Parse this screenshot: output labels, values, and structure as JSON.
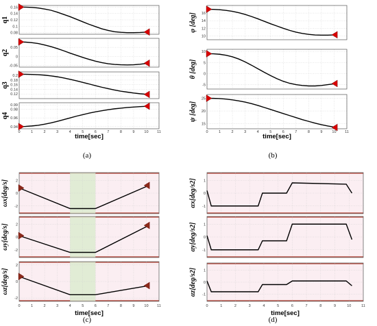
{
  "captions": [
    "(a)",
    "(b)",
    "(c)",
    "(d)"
  ],
  "chart_data": [
    {
      "panel": "(a)",
      "type": "line",
      "xlabel": "time[sec]",
      "xlim": [
        0,
        11
      ],
      "xticks": [
        0,
        1,
        2,
        3,
        4,
        5,
        6,
        7,
        8,
        9,
        10,
        11
      ],
      "subplots": [
        {
          "ylabel": "q1",
          "ylim": [
            0.075,
            0.165
          ],
          "yticks": [
            0.08,
            0.1,
            0.12,
            0.14,
            0.16
          ],
          "x": [
            0,
            0.5,
            1,
            1.5,
            2,
            2.5,
            3,
            3.5,
            4,
            4.5,
            5,
            5.5,
            6,
            6.5,
            7,
            7.5,
            8,
            8.5,
            9,
            9.5,
            10.2
          ],
          "y": [
            0.16,
            0.1598,
            0.159,
            0.157,
            0.154,
            0.15,
            0.144,
            0.137,
            0.13,
            0.122,
            0.114,
            0.106,
            0.099,
            0.092,
            0.087,
            0.083,
            0.081,
            0.08,
            0.08,
            0.0805,
            0.082
          ],
          "markers": [
            {
              "x": 0,
              "y": 0.16
            },
            {
              "x": 10.2,
              "y": 0.082
            }
          ]
        },
        {
          "ylabel": "q2",
          "ylim": [
            -0.06,
            0.1
          ],
          "yticks": [
            -0.05,
            0,
            0.05
          ],
          "x": [
            0,
            0.5,
            1,
            1.5,
            2,
            2.5,
            3,
            3.5,
            4,
            4.5,
            5,
            5.5,
            6,
            6.5,
            7,
            7.5,
            8,
            8.5,
            9,
            9.5,
            10.2
          ],
          "y": [
            0.08,
            0.079,
            0.076,
            0.071,
            0.063,
            0.054,
            0.043,
            0.031,
            0.018,
            0.006,
            -0.006,
            -0.017,
            -0.027,
            -0.035,
            -0.041,
            -0.045,
            -0.047,
            -0.048,
            -0.047,
            -0.044,
            -0.038
          ],
          "markers": [
            {
              "x": 0,
              "y": 0.08
            },
            {
              "x": 10.2,
              "y": -0.038
            }
          ]
        },
        {
          "ylabel": "q3",
          "ylim": [
            0.1,
            0.215
          ],
          "yticks": [
            0.12,
            0.14,
            0.16,
            0.18,
            0.2
          ],
          "x": [
            0,
            0.5,
            1,
            1.5,
            2,
            2.5,
            3,
            3.5,
            4,
            4.5,
            5,
            5.5,
            6,
            6.5,
            7,
            7.5,
            8,
            8.5,
            9,
            9.5,
            10.2
          ],
          "y": [
            0.205,
            0.205,
            0.204,
            0.203,
            0.201,
            0.198,
            0.194,
            0.189,
            0.183,
            0.177,
            0.17,
            0.163,
            0.156,
            0.149,
            0.143,
            0.137,
            0.132,
            0.128,
            0.124,
            0.121,
            0.118
          ],
          "markers": [
            {
              "x": 0,
              "y": 0.205
            },
            {
              "x": 10.2,
              "y": 0.118
            }
          ]
        },
        {
          "ylabel": "q4",
          "ylim": [
            0.935,
            0.995
          ],
          "yticks": [
            0.94,
            0.96,
            0.98,
            0.99
          ],
          "x": [
            0,
            0.5,
            1,
            1.5,
            2,
            2.5,
            3,
            3.5,
            4,
            4.5,
            5,
            5.5,
            6,
            6.5,
            7,
            7.5,
            8,
            8.5,
            9,
            9.5,
            10.2
          ],
          "y": [
            0.94,
            0.9405,
            0.9415,
            0.943,
            0.9455,
            0.9485,
            0.952,
            0.956,
            0.96,
            0.964,
            0.9675,
            0.971,
            0.974,
            0.9765,
            0.979,
            0.981,
            0.9825,
            0.984,
            0.985,
            0.986,
            0.987
          ],
          "markers": [
            {
              "x": 0,
              "y": 0.94
            },
            {
              "x": 10.2,
              "y": 0.987
            }
          ]
        }
      ]
    },
    {
      "panel": "(b)",
      "type": "line",
      "xlabel": "time[sec]",
      "xlim": [
        0,
        11
      ],
      "xticks": [
        0,
        1,
        2,
        3,
        4,
        5,
        6,
        7,
        8,
        9,
        10,
        11
      ],
      "subplots": [
        {
          "ylabel": "φ [deg]",
          "ylim": [
            9,
            18
          ],
          "yticks": [
            10,
            12,
            14,
            16
          ],
          "x": [
            0,
            0.5,
            1,
            1.5,
            2,
            2.5,
            3,
            3.5,
            4,
            4.5,
            5,
            5.5,
            6,
            6.5,
            7,
            7.5,
            8,
            8.5,
            9,
            9.5,
            10.2
          ],
          "y": [
            17,
            16.97,
            16.88,
            16.7,
            16.45,
            16.1,
            15.65,
            15.1,
            14.5,
            13.85,
            13.2,
            12.6,
            12.0,
            11.45,
            11.0,
            10.65,
            10.4,
            10.25,
            10.2,
            10.2,
            10.3
          ],
          "markers": [
            {
              "x": 0,
              "y": 17
            },
            {
              "x": 10.2,
              "y": 10.3
            }
          ]
        },
        {
          "ylabel": "θ [deg]",
          "ylim": [
            -7,
            11
          ],
          "yticks": [
            -5,
            0,
            5,
            10
          ],
          "x": [
            0,
            0.5,
            1,
            1.5,
            2,
            2.5,
            3,
            3.5,
            4,
            4.5,
            5,
            5.5,
            6,
            6.5,
            7,
            7.5,
            8,
            8.5,
            9,
            9.5,
            10.2
          ],
          "y": [
            9,
            8.95,
            8.75,
            8.3,
            7.6,
            6.6,
            5.3,
            3.8,
            2.2,
            0.6,
            -0.9,
            -2.3,
            -3.5,
            -4.4,
            -5.0,
            -5.4,
            -5.6,
            -5.6,
            -5.4,
            -5.0,
            -4.5
          ],
          "markers": [
            {
              "x": 0,
              "y": 9
            },
            {
              "x": 10.2,
              "y": -4.5
            }
          ]
        },
        {
          "ylabel": "ψ [deg]",
          "ylim": [
            13,
            26.5
          ],
          "yticks": [
            15,
            20,
            25
          ],
          "x": [
            0,
            0.5,
            1,
            1.5,
            2,
            2.5,
            3,
            3.5,
            4,
            4.5,
            5,
            5.5,
            6,
            6.5,
            7,
            7.5,
            8,
            8.5,
            9,
            9.5,
            10.2
          ],
          "y": [
            25,
            24.98,
            24.9,
            24.7,
            24.4,
            24.0,
            23.5,
            22.9,
            22.2,
            21.4,
            20.6,
            19.8,
            19.0,
            18.2,
            17.4,
            16.6,
            15.9,
            15.2,
            14.6,
            14.1,
            13.5
          ],
          "markers": [
            {
              "x": 0,
              "y": 25
            },
            {
              "x": 10.2,
              "y": 13.5
            }
          ]
        }
      ]
    },
    {
      "panel": "(c)",
      "type": "line",
      "xlabel": "time[sec]",
      "xlim": [
        0,
        11
      ],
      "xticks": [
        0,
        1,
        2,
        3,
        4,
        5,
        6,
        7,
        8,
        9,
        10,
        11
      ],
      "shaded_x": [
        4,
        6
      ],
      "subplots": [
        {
          "ylabel": "ωx[deg/s]",
          "ylim": [
            -3.2,
            3.2
          ],
          "yticks": [
            -2,
            0,
            2
          ],
          "x": [
            0,
            4,
            6,
            10.2
          ],
          "y": [
            0.8,
            -2.4,
            -2.4,
            1.2
          ],
          "markers": [
            {
              "x": 0,
              "y": 0.8
            },
            {
              "x": 10.2,
              "y": 1.2
            }
          ]
        },
        {
          "ylabel": "ωy[deg/s]",
          "ylim": [
            -3.2,
            3.2
          ],
          "yticks": [
            -2,
            0,
            2
          ],
          "x": [
            0,
            4,
            6,
            10.2
          ],
          "y": [
            0.2,
            -2.4,
            -2.4,
            1.8
          ],
          "markers": [
            {
              "x": 0,
              "y": 0.2
            },
            {
              "x": 10.2,
              "y": 1.8
            }
          ]
        },
        {
          "ylabel": "ωz[deg/s]",
          "ylim": [
            -2.4,
            2.4
          ],
          "yticks": [
            -2,
            0,
            2
          ],
          "x": [
            0,
            4,
            6,
            10.2
          ],
          "y": [
            0.6,
            -1.6,
            -1.6,
            -0.5
          ],
          "markers": [
            {
              "x": 0,
              "y": 0.6
            },
            {
              "x": 10.2,
              "y": -0.5
            }
          ]
        }
      ]
    },
    {
      "panel": "(d)",
      "type": "line",
      "xlabel": "time[sec]",
      "xlim": [
        0,
        11
      ],
      "xticks": [
        0,
        1,
        2,
        3,
        4,
        5,
        6,
        7,
        8,
        9,
        10,
        11
      ],
      "subplots": [
        {
          "ylabel": "αx[deg/s2]",
          "ylim": [
            -1.6,
            1.6
          ],
          "yticks": [
            -1,
            0,
            1
          ],
          "x": [
            0,
            0.3,
            3.6,
            3.9,
            5.6,
            6,
            9.8,
            10.2
          ],
          "y": [
            0.2,
            -1,
            -1,
            0,
            0,
            0.8,
            0.7,
            0
          ],
          "markers": []
        },
        {
          "ylabel": "αy[deg/s2]",
          "ylim": [
            -1.6,
            1.6
          ],
          "yticks": [
            -1,
            0,
            1
          ],
          "x": [
            0,
            0.3,
            3.6,
            3.9,
            5.6,
            6,
            9.8,
            10.2
          ],
          "y": [
            0.1,
            -1,
            -1,
            -0.3,
            -0.3,
            1,
            1,
            -0.2
          ],
          "markers": []
        },
        {
          "ylabel": "αz[deg/s2]",
          "ylim": [
            -1.6,
            1.6
          ],
          "yticks": [
            -1,
            0,
            1
          ],
          "x": [
            0,
            0.3,
            3.6,
            3.9,
            5.6,
            6,
            9.8,
            10.2
          ],
          "y": [
            0.1,
            -0.8,
            -0.8,
            -0.2,
            -0.2,
            0.1,
            0.1,
            -0.3
          ],
          "markers": []
        }
      ]
    }
  ]
}
